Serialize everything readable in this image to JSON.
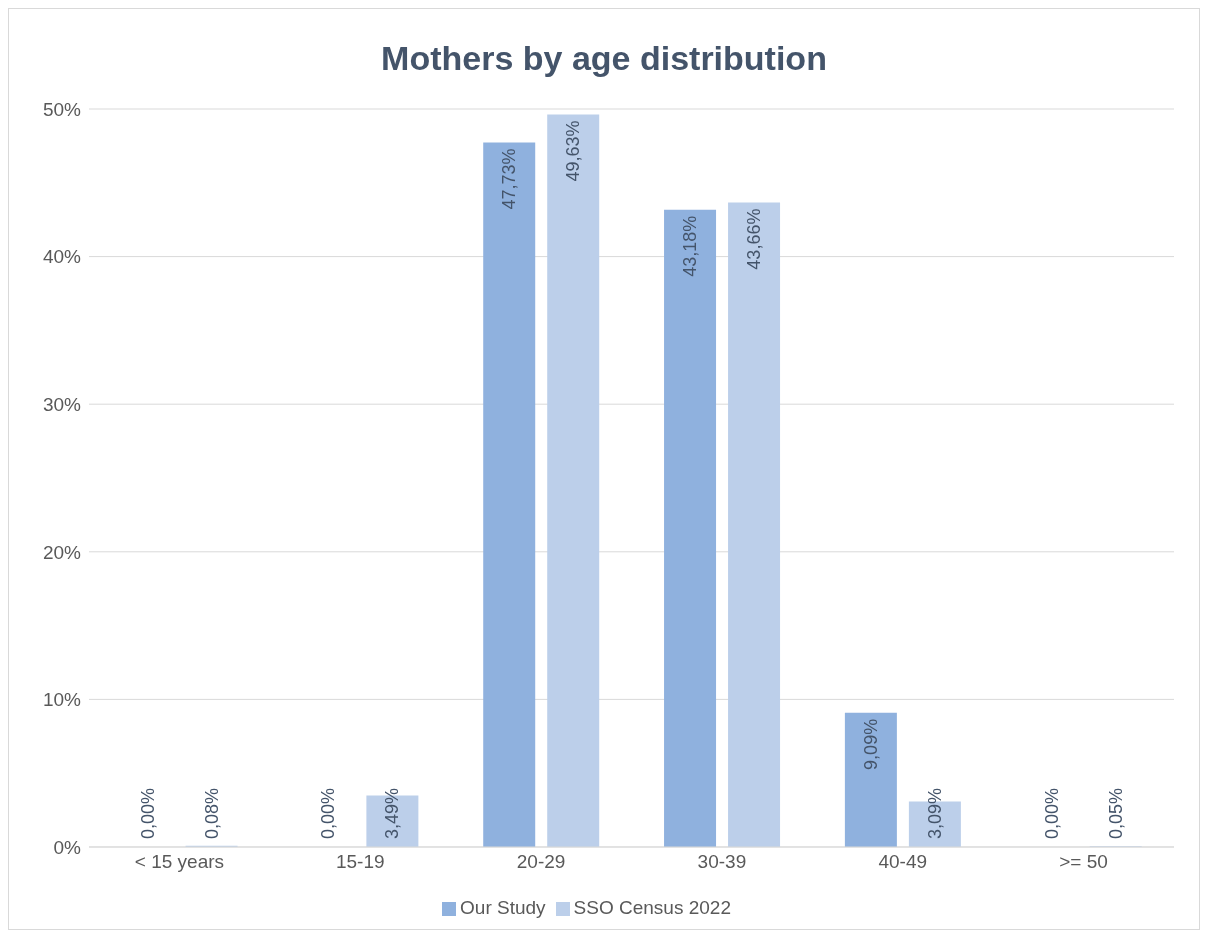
{
  "chart_data": {
    "type": "bar",
    "title": "Mothers by age distribution",
    "categories": [
      "< 15 years",
      "15-19",
      "20-29",
      "30-39",
      "40-49",
      ">= 50"
    ],
    "series": [
      {
        "name": "Our Study",
        "color": "#8fb1de",
        "values": [
          0,
          0,
          47.73,
          43.18,
          9.09,
          0
        ],
        "value_labels": [
          "0,00%",
          "0,00%",
          "47,73%",
          "43,18%",
          "9,09%",
          "0,00%"
        ]
      },
      {
        "name": "SSO Census 2022",
        "color": "#bccfea",
        "values": [
          0.08,
          3.49,
          49.63,
          43.66,
          3.09,
          0.05
        ],
        "value_labels": [
          "0,08%",
          "3,49%",
          "49,63%",
          "43,66%",
          "3,09%",
          "0,05%"
        ]
      }
    ],
    "ylim": [
      0,
      50
    ],
    "yticks": [
      {
        "value": 0,
        "label": "0%"
      },
      {
        "value": 10,
        "label": "10%"
      },
      {
        "value": 20,
        "label": "20%"
      },
      {
        "value": 30,
        "label": "30%"
      },
      {
        "value": 40,
        "label": "40%"
      },
      {
        "value": 50,
        "label": "50%"
      }
    ],
    "grid": "y",
    "legend": "bottom"
  }
}
